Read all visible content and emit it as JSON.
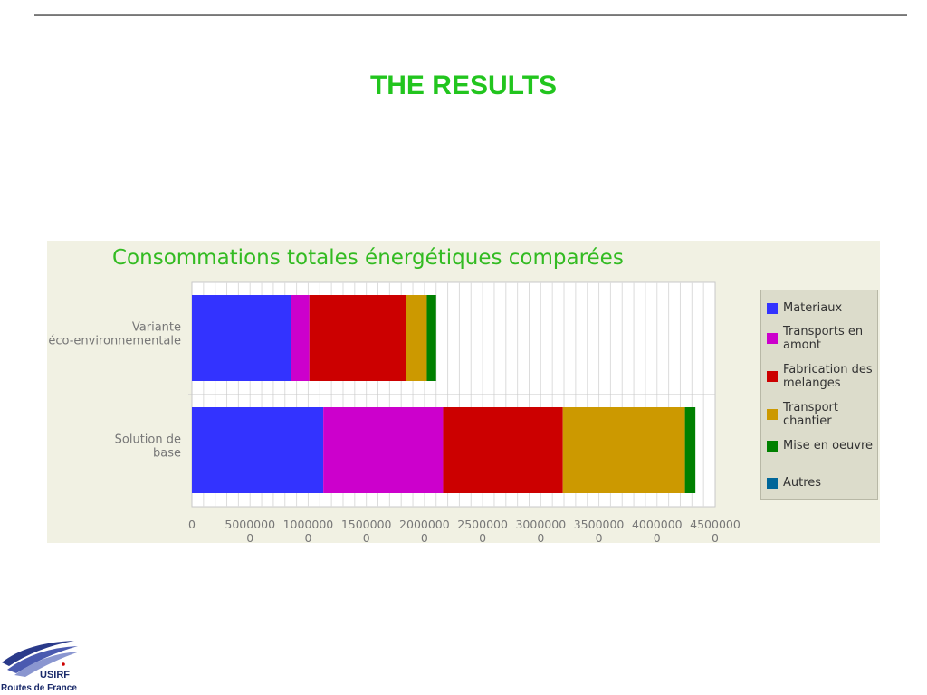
{
  "slide": {
    "title": "THE RESULTS"
  },
  "logo": {
    "name": "USIRF",
    "subtitle": "Routes de France"
  },
  "chart_data": {
    "type": "bar",
    "orientation": "horizontal",
    "stacked": true,
    "title": "Consommations totales énergétiques comparées",
    "categories": [
      [
        "Variante",
        "éco-environnementale"
      ],
      [
        "Solution de",
        "base"
      ]
    ],
    "xlim": [
      0,
      45000000
    ],
    "x_ticks": [
      0,
      5000000,
      10000000,
      15000000,
      20000000,
      25000000,
      30000000,
      35000000,
      40000000,
      45000000
    ],
    "x_tick_labels": [
      [
        "0",
        ""
      ],
      [
        "5000000",
        "0"
      ],
      [
        "1000000",
        "0"
      ],
      [
        "1500000",
        "0"
      ],
      [
        "2000000",
        "0"
      ],
      [
        "2500000",
        "0"
      ],
      [
        "3000000",
        "0"
      ],
      [
        "3500000",
        "0"
      ],
      [
        "4000000",
        "0"
      ],
      [
        "4500000",
        "0"
      ]
    ],
    "grid": true,
    "legend_position": "right",
    "series": [
      {
        "name": "Materiaux",
        "color": "#3333ff",
        "values": [
          8500000,
          11300000
        ]
      },
      {
        "name": "Transports en amont",
        "color": "#cc00cc",
        "values": [
          1600000,
          10300000
        ]
      },
      {
        "name": "Fabrication des melanges",
        "color": "#cc0000",
        "values": [
          8300000,
          10300000
        ]
      },
      {
        "name": "Transport chantier",
        "color": "#cc9900",
        "values": [
          1800000,
          10500000
        ]
      },
      {
        "name": "Mise en oeuvre",
        "color": "#008000",
        "values": [
          800000,
          900000
        ]
      },
      {
        "name": "Autres",
        "color": "#006699",
        "values": [
          0,
          0
        ]
      }
    ]
  }
}
